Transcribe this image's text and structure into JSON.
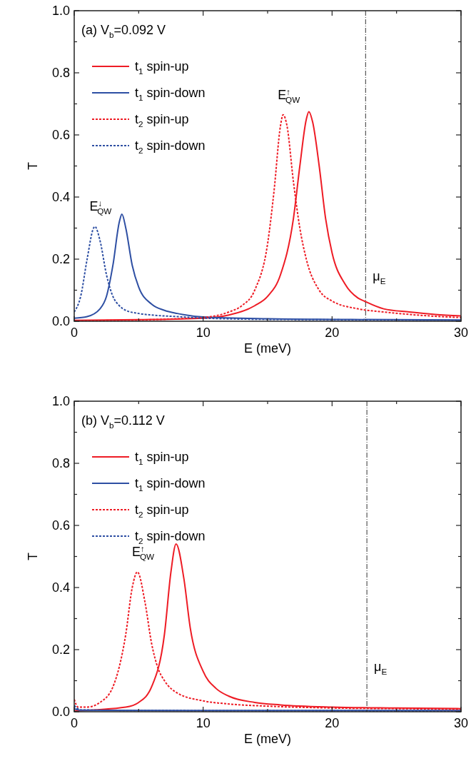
{
  "chart_data": [
    {
      "type": "line",
      "title": "(a) V$_{b}$=0.092 V",
      "xlabel": "E (meV)",
      "ylabel": "T",
      "xlim": [
        0,
        30
      ],
      "ylim": [
        0,
        1
      ],
      "xticks": [
        0,
        {
          "value": 5,
          "label": null
        },
        10,
        {
          "value": 15,
          "label": null
        },
        20,
        {
          "value": 25,
          "label": null
        },
        30
      ],
      "yticks": [
        {
          "value": 0,
          "label": "0.0"
        },
        {
          "value": 0.1,
          "label": null
        },
        {
          "value": 0.2,
          "label": "0.2"
        },
        {
          "value": 0.3,
          "label": null
        },
        {
          "value": 0.4,
          "label": "0.4"
        },
        {
          "value": 0.5,
          "label": null
        },
        {
          "value": 0.6,
          "label": "0.6"
        },
        {
          "value": 0.7,
          "label": null
        },
        {
          "value": 0.8,
          "label": "0.8"
        },
        {
          "value": 0.9,
          "label": null
        },
        {
          "value": 1,
          "label": "1.0"
        }
      ],
      "legend": "top left",
      "grid": false,
      "series": [
        {
          "name": "t$_{1}$ spin-up",
          "color": "#ee1c25",
          "line_style": "solid",
          "x": [
            0,
            5,
            10,
            12,
            14,
            15,
            16,
            17,
            17.5,
            18,
            18.2,
            18.5,
            19,
            19.5,
            20,
            21,
            22,
            22.5,
            24,
            26,
            28,
            30
          ],
          "values": [
            0.003,
            0.005,
            0.01,
            0.02,
            0.05,
            0.08,
            0.15,
            0.33,
            0.5,
            0.65,
            0.675,
            0.64,
            0.5,
            0.33,
            0.22,
            0.12,
            0.075,
            0.065,
            0.04,
            0.03,
            0.022,
            0.017
          ]
        },
        {
          "name": "t$_{1}$ spin-down",
          "color": "#2e4fa3",
          "line_style": "solid",
          "x": [
            0,
            1,
            2,
            2.5,
            3,
            3.5,
            3.7,
            4,
            4.5,
            5,
            6,
            7,
            8,
            10,
            15,
            20,
            25,
            30
          ],
          "values": [
            0.01,
            0.015,
            0.04,
            0.08,
            0.18,
            0.32,
            0.345,
            0.3,
            0.18,
            0.11,
            0.055,
            0.035,
            0.025,
            0.014,
            0.008,
            0.006,
            0.005,
            0.004
          ]
        },
        {
          "name": "t$_{2}$ spin-up",
          "color": "#ee1c25",
          "line_style": "dashed",
          "x": [
            0,
            5,
            8,
            10,
            12,
            13,
            14,
            15,
            15.5,
            16,
            16.2,
            16.5,
            17,
            17.5,
            18,
            19,
            20,
            22,
            24,
            26,
            28,
            30
          ],
          "values": [
            0.002,
            0.004,
            0.008,
            0.012,
            0.03,
            0.05,
            0.1,
            0.25,
            0.42,
            0.63,
            0.665,
            0.63,
            0.45,
            0.3,
            0.2,
            0.1,
            0.065,
            0.04,
            0.03,
            0.022,
            0.016,
            0.012
          ]
        },
        {
          "name": "t$_{2}$ spin-down",
          "color": "#2e4fa3",
          "line_style": "dashed",
          "x": [
            0,
            0.5,
            1,
            1.5,
            1.6,
            2,
            2.5,
            3,
            3.5,
            4,
            5,
            6,
            8,
            10,
            15,
            20,
            30
          ],
          "values": [
            0.03,
            0.08,
            0.2,
            0.3,
            0.305,
            0.26,
            0.15,
            0.08,
            0.05,
            0.035,
            0.025,
            0.02,
            0.015,
            0.01,
            0.006,
            0.005,
            0.003
          ]
        }
      ],
      "ref_lines": [
        {
          "axis": "x",
          "value": 22.6,
          "label": "μ$_{E}$",
          "color": "#333333"
        }
      ],
      "annotations": [
        "E$^{↑}$$_{QW}$",
        "E$^{↓}$$_{QW}$"
      ]
    },
    {
      "type": "line",
      "title": "(b) V$_{b}$=0.112 V",
      "xlabel": "E (meV)",
      "ylabel": "T",
      "xlim": [
        0,
        30
      ],
      "ylim": [
        0,
        1
      ],
      "xticks": [
        0,
        {
          "value": 5,
          "label": null
        },
        10,
        {
          "value": 15,
          "label": null
        },
        20,
        {
          "value": 25,
          "label": null
        },
        30
      ],
      "yticks": [
        {
          "value": 0,
          "label": "0.0"
        },
        {
          "value": 0.1,
          "label": null
        },
        {
          "value": 0.2,
          "label": "0.2"
        },
        {
          "value": 0.3,
          "label": null
        },
        {
          "value": 0.4,
          "label": "0.4"
        },
        {
          "value": 0.5,
          "label": null
        },
        {
          "value": 0.6,
          "label": "0.6"
        },
        {
          "value": 0.7,
          "label": null
        },
        {
          "value": 0.8,
          "label": "0.8"
        },
        {
          "value": 0.9,
          "label": null
        },
        {
          "value": 1,
          "label": "1.0"
        }
      ],
      "legend": "top left",
      "grid": false,
      "series": [
        {
          "name": "t$_{1}$ spin-up",
          "color": "#ee1c25",
          "line_style": "solid",
          "x": [
            0,
            4,
            5,
            6,
            7,
            7.5,
            7.9,
            8.5,
            9,
            10,
            11,
            12,
            14,
            16,
            20,
            25,
            30
          ],
          "values": [
            0.003,
            0.015,
            0.03,
            0.08,
            0.25,
            0.45,
            0.54,
            0.43,
            0.27,
            0.13,
            0.075,
            0.05,
            0.03,
            0.022,
            0.015,
            0.012,
            0.01
          ]
        },
        {
          "name": "t$_{1}$ spin-down",
          "color": "#2e4fa3",
          "line_style": "solid",
          "x": [
            0,
            0.5,
            10,
            20,
            30
          ],
          "values": [
            0.01,
            0.005,
            0.004,
            0.004,
            0.004
          ]
        },
        {
          "name": "t$_{2}$ spin-up",
          "color": "#ee1c25",
          "line_style": "dashed",
          "x": [
            0,
            0.3,
            1,
            2,
            3,
            4,
            4.5,
            4.9,
            5.5,
            6,
            6.5,
            7,
            8,
            10,
            12,
            15,
            20,
            25,
            30
          ],
          "values": [
            0.04,
            0.015,
            0.015,
            0.03,
            0.08,
            0.25,
            0.4,
            0.45,
            0.35,
            0.22,
            0.14,
            0.1,
            0.06,
            0.035,
            0.025,
            0.018,
            0.012,
            0.01,
            0.008
          ]
        },
        {
          "name": "t$_{2}$ spin-down",
          "color": "#2e4fa3",
          "line_style": "dashed",
          "x": [
            0,
            0.5,
            5,
            30
          ],
          "values": [
            0.02,
            0.006,
            0.004,
            0.003
          ]
        }
      ],
      "ref_lines": [
        {
          "axis": "x",
          "value": 22.7,
          "label": "μ$_{E}$",
          "color": "#333333"
        }
      ],
      "annotations": [
        "E$^{↑}$$_{QW}$"
      ]
    }
  ]
}
